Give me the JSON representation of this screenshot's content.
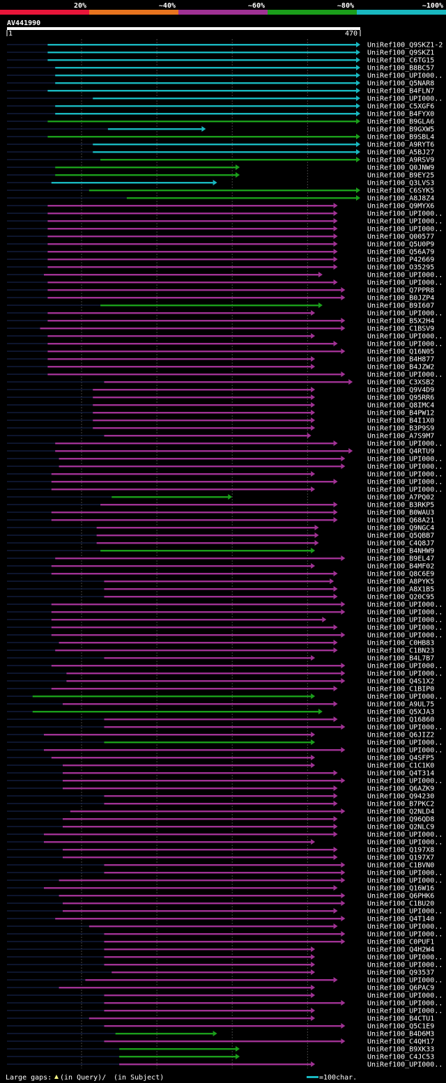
{
  "query": {
    "name": "AV441990",
    "start": "1",
    "end": "470",
    "length": 470
  },
  "identity_scale": [
    {
      "label": "20%",
      "color": "#e8163a"
    },
    {
      "label": "~40%",
      "color": "#e8741f"
    },
    {
      "label": "~60%",
      "color": "#a03294"
    },
    {
      "label": "~80%",
      "color": "#1b9e1b"
    },
    {
      "label": "~100%",
      "color": "#19b8c0"
    }
  ],
  "hits": [
    {
      "name": "UniRef100_Q9SKZ1-2",
      "start": 55,
      "end": 470,
      "color": "cyan"
    },
    {
      "name": "UniRef100_Q9SKZ1",
      "start": 55,
      "end": 470,
      "color": "cyan"
    },
    {
      "name": "UniRef100_C6TG15",
      "start": 55,
      "end": 470,
      "color": "cyan"
    },
    {
      "name": "UniRef100_B8BC57",
      "start": 65,
      "end": 470,
      "color": "cyan"
    },
    {
      "name": "UniRef100_UPI000..",
      "start": 65,
      "end": 470,
      "color": "cyan"
    },
    {
      "name": "UniRef100_Q5NAR8",
      "start": 65,
      "end": 470,
      "color": "cyan"
    },
    {
      "name": "UniRef100_B4FLN7",
      "start": 55,
      "end": 470,
      "color": "cyan"
    },
    {
      "name": "UniRef100_UPI000..",
      "start": 115,
      "end": 470,
      "color": "cyan"
    },
    {
      "name": "UniRef100_C5XGF6",
      "start": 65,
      "end": 470,
      "color": "cyan"
    },
    {
      "name": "UniRef100_B4FYX0",
      "start": 65,
      "end": 470,
      "color": "cyan"
    },
    {
      "name": "UniRef100_B9GLA6",
      "start": 55,
      "end": 470,
      "color": "green"
    },
    {
      "name": "UniRef100_B9GXW5",
      "start": 135,
      "end": 265,
      "color": "cyan"
    },
    {
      "name": "UniRef100_B9SBL4",
      "start": 55,
      "end": 470,
      "color": "green"
    },
    {
      "name": "UniRef100_A9RYT6",
      "start": 115,
      "end": 470,
      "color": "cyan"
    },
    {
      "name": "UniRef100_A5BJ27",
      "start": 115,
      "end": 470,
      "color": "cyan"
    },
    {
      "name": "UniRef100_A9RSV9",
      "start": 125,
      "end": 470,
      "color": "green"
    },
    {
      "name": "UniRef100_Q0JNW9",
      "start": 65,
      "end": 310,
      "color": "green"
    },
    {
      "name": "UniRef100_B9EY25",
      "start": 65,
      "end": 310,
      "color": "green"
    },
    {
      "name": "UniRef100_Q3LVS3",
      "start": 60,
      "end": 280,
      "color": "cyan"
    },
    {
      "name": "UniRef100_C6SYK5",
      "start": 110,
      "end": 470,
      "color": "green"
    },
    {
      "name": "UniRef100_A8J8Z4",
      "start": 160,
      "end": 470,
      "color": "green"
    },
    {
      "name": "UniRef100_Q9MYX6",
      "start": 55,
      "end": 440,
      "color": "purple"
    },
    {
      "name": "UniRef100_UPI000..",
      "start": 55,
      "end": 440,
      "color": "purple"
    },
    {
      "name": "UniRef100_UPI000..",
      "start": 55,
      "end": 440,
      "color": "purple"
    },
    {
      "name": "UniRef100_UPI000..",
      "start": 55,
      "end": 440,
      "color": "purple"
    },
    {
      "name": "UniRef100_Q00577",
      "start": 55,
      "end": 440,
      "color": "purple"
    },
    {
      "name": "UniRef100_Q5U0P9",
      "start": 55,
      "end": 440,
      "color": "purple"
    },
    {
      "name": "UniRef100_Q56A79",
      "start": 55,
      "end": 440,
      "color": "purple"
    },
    {
      "name": "UniRef100_P42669",
      "start": 55,
      "end": 440,
      "color": "purple"
    },
    {
      "name": "UniRef100_O35295",
      "start": 55,
      "end": 440,
      "color": "purple"
    },
    {
      "name": "UniRef100_UPI000..",
      "start": 50,
      "end": 420,
      "color": "purple"
    },
    {
      "name": "UniRef100_UPI000..",
      "start": 55,
      "end": 440,
      "color": "purple"
    },
    {
      "name": "UniRef100_Q7PPR8",
      "start": 55,
      "end": 450,
      "color": "purple"
    },
    {
      "name": "UniRef100_B0JZP4",
      "start": 55,
      "end": 450,
      "color": "purple"
    },
    {
      "name": "UniRef100_B9I607",
      "start": 125,
      "end": 420,
      "color": "green"
    },
    {
      "name": "UniRef100_UPI000..",
      "start": 55,
      "end": 410,
      "color": "purple"
    },
    {
      "name": "UniRef100_B5X2H4",
      "start": 55,
      "end": 450,
      "color": "purple"
    },
    {
      "name": "UniRef100_C1BSV9",
      "start": 45,
      "end": 450,
      "color": "purple"
    },
    {
      "name": "UniRef100_UPI000..",
      "start": 55,
      "end": 410,
      "color": "purple"
    },
    {
      "name": "UniRef100_UPI000..",
      "start": 55,
      "end": 440,
      "color": "purple"
    },
    {
      "name": "UniRef100_Q16N05",
      "start": 55,
      "end": 450,
      "color": "purple"
    },
    {
      "name": "UniRef100_B4H877",
      "start": 55,
      "end": 410,
      "color": "purple"
    },
    {
      "name": "UniRef100_B4JZW2",
      "start": 55,
      "end": 410,
      "color": "purple"
    },
    {
      "name": "UniRef100_UPI000..",
      "start": 55,
      "end": 450,
      "color": "purple"
    },
    {
      "name": "UniRef100_C3XSB2",
      "start": 130,
      "end": 460,
      "color": "purple"
    },
    {
      "name": "UniRef100_Q9V4D9",
      "start": 115,
      "end": 410,
      "color": "purple"
    },
    {
      "name": "UniRef100_Q95RR6",
      "start": 115,
      "end": 410,
      "color": "purple"
    },
    {
      "name": "UniRef100_Q8IMC4",
      "start": 115,
      "end": 410,
      "color": "purple"
    },
    {
      "name": "UniRef100_B4PW12",
      "start": 115,
      "end": 410,
      "color": "purple"
    },
    {
      "name": "UniRef100_B4I1X0",
      "start": 115,
      "end": 410,
      "color": "purple"
    },
    {
      "name": "UniRef100_B3P9S9",
      "start": 115,
      "end": 410,
      "color": "purple"
    },
    {
      "name": "UniRef100_A7S9M7",
      "start": 130,
      "end": 405,
      "color": "purple"
    },
    {
      "name": "UniRef100_UPI000..",
      "start": 65,
      "end": 440,
      "color": "purple"
    },
    {
      "name": "UniRef100_Q4RTU9",
      "start": 65,
      "end": 460,
      "color": "purple"
    },
    {
      "name": "UniRef100_UPI000..",
      "start": 70,
      "end": 450,
      "color": "purple"
    },
    {
      "name": "UniRef100_UPI000..",
      "start": 70,
      "end": 450,
      "color": "purple"
    },
    {
      "name": "UniRef100_UPI000..",
      "start": 60,
      "end": 410,
      "color": "purple"
    },
    {
      "name": "UniRef100_UPI000..",
      "start": 60,
      "end": 440,
      "color": "purple"
    },
    {
      "name": "UniRef100_UPI000..",
      "start": 60,
      "end": 410,
      "color": "purple"
    },
    {
      "name": "UniRef100_A7PQ02",
      "start": 140,
      "end": 300,
      "color": "green"
    },
    {
      "name": "UniRef100_B3RKP5",
      "start": 125,
      "end": 440,
      "color": "purple"
    },
    {
      "name": "UniRef100_B0WAU3",
      "start": 60,
      "end": 440,
      "color": "purple"
    },
    {
      "name": "UniRef100_Q68A21",
      "start": 60,
      "end": 440,
      "color": "purple"
    },
    {
      "name": "UniRef100_Q9NGC4",
      "start": 120,
      "end": 415,
      "color": "purple"
    },
    {
      "name": "UniRef100_Q5QBB7",
      "start": 120,
      "end": 415,
      "color": "purple"
    },
    {
      "name": "UniRef100_C4Q8J7",
      "start": 120,
      "end": 415,
      "color": "purple"
    },
    {
      "name": "UniRef100_B4NHW9",
      "start": 125,
      "end": 410,
      "color": "green"
    },
    {
      "name": "UniRef100_B9EL47",
      "start": 65,
      "end": 450,
      "color": "purple"
    },
    {
      "name": "UniRef100_B4MF02",
      "start": 60,
      "end": 410,
      "color": "purple"
    },
    {
      "name": "UniRef100_Q8C6E9",
      "start": 60,
      "end": 440,
      "color": "purple"
    },
    {
      "name": "UniRef100_A8PYK5",
      "start": 130,
      "end": 435,
      "color": "purple"
    },
    {
      "name": "UniRef100_A8X1B5",
      "start": 130,
      "end": 440,
      "color": "purple"
    },
    {
      "name": "UniRef100_Q20C95",
      "start": 130,
      "end": 440,
      "color": "purple"
    },
    {
      "name": "UniRef100_UPI000..",
      "start": 60,
      "end": 450,
      "color": "purple"
    },
    {
      "name": "UniRef100_UPI000..",
      "start": 60,
      "end": 450,
      "color": "purple"
    },
    {
      "name": "UniRef100_UPI000..",
      "start": 60,
      "end": 425,
      "color": "purple"
    },
    {
      "name": "UniRef100_UPI000..",
      "start": 60,
      "end": 440,
      "color": "purple"
    },
    {
      "name": "UniRef100_UPI000..",
      "start": 60,
      "end": 450,
      "color": "purple"
    },
    {
      "name": "UniRef100_C0HB83",
      "start": 70,
      "end": 440,
      "color": "purple"
    },
    {
      "name": "UniRef100_C1BN23",
      "start": 65,
      "end": 440,
      "color": "purple"
    },
    {
      "name": "UniRef100_B4L7B7",
      "start": 130,
      "end": 410,
      "color": "purple"
    },
    {
      "name": "UniRef100_UPI000..",
      "start": 60,
      "end": 450,
      "color": "purple"
    },
    {
      "name": "UniRef100_UPI000..",
      "start": 80,
      "end": 450,
      "color": "purple"
    },
    {
      "name": "UniRef100_Q4S1X2",
      "start": 80,
      "end": 450,
      "color": "purple"
    },
    {
      "name": "UniRef100_C1BIP0",
      "start": 60,
      "end": 440,
      "color": "purple"
    },
    {
      "name": "UniRef100_UPI000..",
      "start": 35,
      "end": 410,
      "color": "green"
    },
    {
      "name": "UniRef100_A9UL75",
      "start": 75,
      "end": 440,
      "color": "purple"
    },
    {
      "name": "UniRef100_Q5XJA3",
      "start": 35,
      "end": 420,
      "color": "green"
    },
    {
      "name": "UniRef100_Q16860",
      "start": 130,
      "end": 440,
      "color": "purple"
    },
    {
      "name": "UniRef100_UPI000..",
      "start": 130,
      "end": 450,
      "color": "purple"
    },
    {
      "name": "UniRef100_Q6JIZ2",
      "start": 50,
      "end": 410,
      "color": "purple"
    },
    {
      "name": "UniRef100_UPI000..",
      "start": 130,
      "end": 410,
      "color": "green"
    },
    {
      "name": "UniRef100_UPI000..",
      "start": 50,
      "end": 450,
      "color": "purple"
    },
    {
      "name": "UniRef100_Q4SFP5",
      "start": 60,
      "end": 410,
      "color": "purple"
    },
    {
      "name": "UniRef100_C1C1K0",
      "start": 75,
      "end": 410,
      "color": "purple"
    },
    {
      "name": "UniRef100_Q4T314",
      "start": 75,
      "end": 440,
      "color": "purple"
    },
    {
      "name": "UniRef100_UPI000..",
      "start": 75,
      "end": 450,
      "color": "purple"
    },
    {
      "name": "UniRef100_Q6AZK9",
      "start": 75,
      "end": 440,
      "color": "purple"
    },
    {
      "name": "UniRef100_Q94230",
      "start": 130,
      "end": 440,
      "color": "purple"
    },
    {
      "name": "UniRef100_B7PKC2",
      "start": 130,
      "end": 440,
      "color": "purple"
    },
    {
      "name": "UniRef100_Q2NLD4",
      "start": 85,
      "end": 450,
      "color": "purple"
    },
    {
      "name": "UniRef100_Q96QD8",
      "start": 75,
      "end": 440,
      "color": "purple"
    },
    {
      "name": "UniRef100_Q2NLC9",
      "start": 75,
      "end": 440,
      "color": "purple"
    },
    {
      "name": "UniRef100_UPI000..",
      "start": 50,
      "end": 440,
      "color": "purple"
    },
    {
      "name": "UniRef100_UPI000..",
      "start": 50,
      "end": 410,
      "color": "purple"
    },
    {
      "name": "UniRef100_Q197X8",
      "start": 75,
      "end": 440,
      "color": "purple"
    },
    {
      "name": "UniRef100_Q197X7",
      "start": 75,
      "end": 440,
      "color": "purple"
    },
    {
      "name": "UniRef100_C1BVN0",
      "start": 130,
      "end": 450,
      "color": "purple"
    },
    {
      "name": "UniRef100_UPI000..",
      "start": 130,
      "end": 450,
      "color": "purple"
    },
    {
      "name": "UniRef100_UPI000..",
      "start": 70,
      "end": 450,
      "color": "purple"
    },
    {
      "name": "UniRef100_Q16W16",
      "start": 50,
      "end": 440,
      "color": "purple"
    },
    {
      "name": "UniRef100_Q6PHK6",
      "start": 70,
      "end": 450,
      "color": "purple"
    },
    {
      "name": "UniRef100_C1BU20",
      "start": 75,
      "end": 450,
      "color": "purple"
    },
    {
      "name": "UniRef100_UPI000..",
      "start": 75,
      "end": 440,
      "color": "purple"
    },
    {
      "name": "UniRef100_Q4T140",
      "start": 65,
      "end": 450,
      "color": "purple"
    },
    {
      "name": "UniRef100_UPI000..",
      "start": 110,
      "end": 440,
      "color": "purple"
    },
    {
      "name": "UniRef100_UPI000..",
      "start": 130,
      "end": 450,
      "color": "purple"
    },
    {
      "name": "UniRef100_C0PUF1",
      "start": 130,
      "end": 450,
      "color": "purple"
    },
    {
      "name": "UniRef100_Q4H2W4",
      "start": 130,
      "end": 410,
      "color": "purple"
    },
    {
      "name": "UniRef100_UPI000..",
      "start": 130,
      "end": 410,
      "color": "purple"
    },
    {
      "name": "UniRef100_UPI000..",
      "start": 130,
      "end": 410,
      "color": "purple"
    },
    {
      "name": "UniRef100_Q93537",
      "start": 140,
      "end": 410,
      "color": "purple"
    },
    {
      "name": "UniRef100_UPI000..",
      "start": 105,
      "end": 440,
      "color": "purple"
    },
    {
      "name": "UniRef100_Q6PAC9",
      "start": 70,
      "end": 410,
      "color": "purple"
    },
    {
      "name": "UniRef100_UPI000..",
      "start": 130,
      "end": 410,
      "color": "purple"
    },
    {
      "name": "UniRef100_UPI000..",
      "start": 130,
      "end": 450,
      "color": "purple"
    },
    {
      "name": "UniRef100_UPI000..",
      "start": 130,
      "end": 410,
      "color": "purple"
    },
    {
      "name": "UniRef100_B4CTU1",
      "start": 110,
      "end": 410,
      "color": "purple"
    },
    {
      "name": "UniRef100_Q5C1E9",
      "start": 130,
      "end": 450,
      "color": "purple"
    },
    {
      "name": "UniRef100_B4D6M3",
      "start": 145,
      "end": 280,
      "color": "green"
    },
    {
      "name": "UniRef100_C4QH17",
      "start": 130,
      "end": 450,
      "color": "purple"
    },
    {
      "name": "UniRef100_B9XK33",
      "start": 150,
      "end": 310,
      "color": "green"
    },
    {
      "name": "UniRef100_C4JC53",
      "start": 150,
      "end": 310,
      "color": "green"
    },
    {
      "name": "UniRef100_UPI000..",
      "start": 150,
      "end": 410,
      "color": "purple"
    }
  ],
  "footer": {
    "gaps_label": "Large gaps:",
    "in_query": "(in Query)/",
    "in_subject": "(in Subject)",
    "scale_label": "=100char."
  },
  "colors": {
    "purple": "#a03294",
    "green": "#1b9e1b",
    "cyan": "#19b8c0",
    "background": "#000000",
    "gap": "#ffff88"
  }
}
